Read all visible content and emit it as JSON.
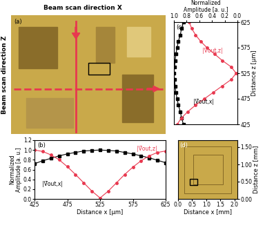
{
  "panel_a": {
    "label": "(a)",
    "title_x": "Beam scan direction X",
    "title_z": "Beam scan direction Z"
  },
  "chart_data": [
    {
      "type": "line",
      "panel": "(b)",
      "x": [
        425,
        437.5,
        450,
        462.5,
        475,
        487.5,
        500,
        512.5,
        525,
        537.5,
        550,
        562.5,
        575,
        587.5,
        600,
        612.5,
        625
      ],
      "xlim": [
        425,
        625
      ],
      "xticks": [
        425,
        475,
        525,
        575,
        625
      ],
      "ylim": [
        0.0,
        1.2
      ],
      "yticks": [
        0.0,
        0.2,
        0.4,
        0.6,
        0.8,
        1.0,
        1.2
      ],
      "x_label": "Distance x [μm]",
      "y_label": "Normalized\nAmplitude [a. u.]",
      "series": [
        {
          "name": "|V̄out,x|",
          "color": "#000000",
          "marker": "square",
          "line_style": "solid",
          "values": [
            0.72,
            0.78,
            0.83,
            0.88,
            0.92,
            0.95,
            0.98,
            0.99,
            1.0,
            0.99,
            0.98,
            0.95,
            0.92,
            0.88,
            0.84,
            0.79,
            0.74
          ]
        },
        {
          "name": "|V̄out,z|",
          "color": "#e8384f",
          "marker": "circle",
          "line_style": "solid",
          "values": [
            1.0,
            0.97,
            0.9,
            0.8,
            0.66,
            0.5,
            0.33,
            0.16,
            0.02,
            0.16,
            0.33,
            0.5,
            0.65,
            0.78,
            0.88,
            0.95,
            0.98
          ]
        }
      ]
    },
    {
      "type": "line",
      "panel": "(c)",
      "orientation": "horizontal",
      "y": [
        425,
        437.5,
        450,
        462.5,
        475,
        487.5,
        500,
        512.5,
        525,
        537.5,
        550,
        562.5,
        575,
        587.5,
        600,
        612.5,
        625
      ],
      "xlim": [
        1.0,
        0.0
      ],
      "xticks": [
        1.0,
        0.8,
        0.6,
        0.4,
        0.2,
        0.0
      ],
      "ylim": [
        425,
        625
      ],
      "yticks": [
        425,
        475,
        525,
        575,
        625
      ],
      "x_label": "Normalized\nAmplitude [a. u.]",
      "y_label": "Distance z [μm]",
      "series": [
        {
          "name": "|V̄out,x|",
          "color": "#000000",
          "marker": "square",
          "line_style": "solid",
          "values": [
            0.85,
            0.88,
            0.9,
            0.93,
            0.95,
            0.97,
            0.98,
            0.99,
            1.0,
            0.99,
            0.98,
            0.97,
            0.95,
            0.93,
            0.9,
            0.88,
            0.85
          ]
        },
        {
          "name": "|V̄out,z|",
          "color": "#e8384f",
          "marker": "circle",
          "line_style": "solid",
          "values": [
            0.95,
            0.88,
            0.78,
            0.66,
            0.52,
            0.38,
            0.24,
            0.1,
            0.02,
            0.1,
            0.24,
            0.36,
            0.48,
            0.58,
            0.66,
            0.72,
            0.76
          ]
        }
      ]
    },
    {
      "type": "image",
      "panel": "(d)",
      "xlim": [
        0.0,
        2.1
      ],
      "xticks": [
        0.0,
        0.5,
        1.0,
        1.5,
        2.0
      ],
      "ylim": [
        0.0,
        1.7
      ],
      "yticks": [
        {
          "value": 0.0,
          "label": "0.00"
        },
        {
          "value": 0.5,
          "label": "0.50"
        },
        {
          "value": 1.0,
          "label": "1.00"
        },
        {
          "value": 1.5,
          "label": "1.50"
        }
      ],
      "x_label": "Distance x [mm]",
      "y_label": "Distance z [mm]"
    }
  ]
}
